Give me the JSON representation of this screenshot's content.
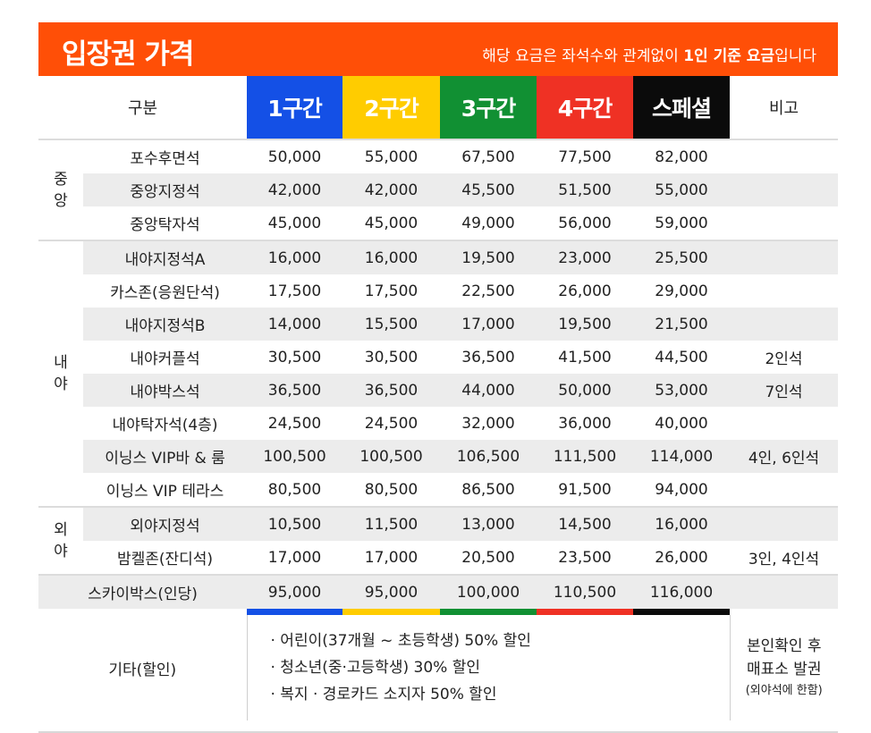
{
  "banner": {
    "title": "입장권 가격",
    "note_prefix": "해당 요금은 좌석수와 관계없이 ",
    "note_bold": "1인 기준 요금",
    "note_suffix": "입니다"
  },
  "header": {
    "category": "구분",
    "zones": [
      "1구간",
      "2구간",
      "3구간",
      "4구간",
      "스페셜"
    ],
    "remarks": "비고"
  },
  "groups": {
    "center": "중\n앙",
    "infield": "내\n야",
    "outfield": "외\n야"
  },
  "rows": [
    {
      "seat": "포수후면석",
      "prices": [
        "50,000",
        "55,000",
        "67,500",
        "77,500",
        "82,000"
      ],
      "note": ""
    },
    {
      "seat": "중앙지정석",
      "prices": [
        "42,000",
        "42,000",
        "45,500",
        "51,500",
        "55,000"
      ],
      "note": ""
    },
    {
      "seat": "중앙탁자석",
      "prices": [
        "45,000",
        "45,000",
        "49,000",
        "56,000",
        "59,000"
      ],
      "note": ""
    },
    {
      "seat": "내야지정석A",
      "prices": [
        "16,000",
        "16,000",
        "19,500",
        "23,000",
        "25,500"
      ],
      "note": ""
    },
    {
      "seat": "카스존(응원단석)",
      "prices": [
        "17,500",
        "17,500",
        "22,500",
        "26,000",
        "29,000"
      ],
      "note": ""
    },
    {
      "seat": "내야지정석B",
      "prices": [
        "14,000",
        "15,500",
        "17,000",
        "19,500",
        "21,500"
      ],
      "note": ""
    },
    {
      "seat": "내야커플석",
      "prices": [
        "30,500",
        "30,500",
        "36,500",
        "41,500",
        "44,500"
      ],
      "note": "2인석"
    },
    {
      "seat": "내야박스석",
      "prices": [
        "36,500",
        "36,500",
        "44,000",
        "50,000",
        "53,000"
      ],
      "note": "7인석"
    },
    {
      "seat": "내야탁자석(4층)",
      "prices": [
        "24,500",
        "24,500",
        "32,000",
        "36,000",
        "40,000"
      ],
      "note": ""
    },
    {
      "seat": "이닝스 VIP바 & 룸",
      "prices": [
        "100,500",
        "100,500",
        "106,500",
        "111,500",
        "114,000"
      ],
      "note": "4인, 6인석"
    },
    {
      "seat": "이닝스 VIP 테라스",
      "prices": [
        "80,500",
        "80,500",
        "86,500",
        "91,500",
        "94,000"
      ],
      "note": ""
    },
    {
      "seat": "외야지정석",
      "prices": [
        "10,500",
        "11,500",
        "13,000",
        "14,500",
        "16,000"
      ],
      "note": ""
    },
    {
      "seat": "밤켈존(잔디석)",
      "prices": [
        "17,000",
        "17,000",
        "20,500",
        "23,500",
        "26,000"
      ],
      "note": "3인, 4인석"
    },
    {
      "seat": "스카이박스(인당)",
      "prices": [
        "95,000",
        "95,000",
        "100,000",
        "110,500",
        "116,000"
      ],
      "note": ""
    }
  ],
  "etc": {
    "label": "기타(할인)",
    "items": [
      "· 어린이(37개월 ~ 초등학생) 50% 할인",
      "· 청소년(중·고등학생) 30% 할인",
      "· 복지 · 경로카드 소지자 50% 할인"
    ],
    "note_line1": "본인확인 후",
    "note_line2": "매표소 발권",
    "note_small": "(외야석에 한함)"
  },
  "colors": {
    "banner": "#ff4f07",
    "zone1": "#1450e6",
    "zone2": "#ffcc00",
    "zone3": "#119033",
    "zone4": "#ef3124",
    "special": "#0b0b0b",
    "row_shade": "#ececec"
  }
}
